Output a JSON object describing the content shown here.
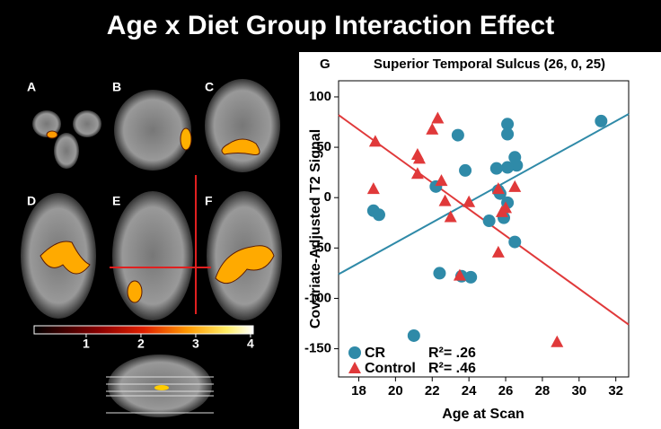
{
  "chart_data": {
    "type": "scatter",
    "title": "Age x Diet Group Interaction Effect",
    "panel_labels": [
      "A",
      "B",
      "C",
      "D",
      "E",
      "F",
      "G"
    ],
    "colorbar_ticks": [
      1,
      2,
      3,
      4
    ],
    "colorbar_lim": [
      0.05,
      4.05
    ],
    "plot_title": "Superior Temporal Sulcus (26, 0, 25)",
    "x_label": "Age at Scan",
    "y_label": "Covariate-Adjusted T2 Signal",
    "xlim": [
      16.9,
      32.7
    ],
    "ylim": [
      -178,
      116
    ],
    "xticks": [
      18,
      20,
      22,
      24,
      26,
      28,
      30,
      32
    ],
    "yticks": [
      -150,
      -100,
      -50,
      0,
      50,
      100
    ],
    "series": [
      {
        "name": "CR",
        "color": "#2f8aa8",
        "marker": "circle",
        "r2_label": "R²= .26",
        "x": [
          31.2,
          26.1,
          26.1,
          23.4,
          26.5,
          26.6,
          26.1,
          25.5,
          23.8,
          26.1,
          22.2,
          18.8,
          19.1,
          25.7,
          25.9,
          25.1,
          26.5,
          23.6,
          24.1,
          22.4,
          21.0,
          25.6
        ],
        "values": [
          76,
          73,
          63,
          62,
          40,
          32,
          30,
          29,
          27,
          -5,
          11,
          -13,
          -17,
          4,
          -20,
          -23,
          -44,
          -78,
          -79,
          -75,
          -137,
          7
        ],
        "fit_x": [
          16.9,
          32.7
        ],
        "fit_values": [
          -76,
          83
        ]
      },
      {
        "name": "Control",
        "color": "#e0393a",
        "marker": "triangle",
        "r2_label": "R²= .46",
        "x": [
          18.9,
          18.8,
          21.2,
          21.3,
          22.0,
          22.3,
          21.2,
          22.5,
          22.7,
          23.0,
          24.0,
          26.5,
          25.6,
          26.0,
          25.8,
          25.6,
          23.5,
          28.8
        ],
        "values": [
          56,
          9,
          43,
          39,
          68,
          79,
          24,
          17,
          -3,
          -19,
          -4,
          11,
          9,
          -10,
          -14,
          -54,
          -77,
          -143
        ],
        "fit_x": [
          16.9,
          32.7
        ],
        "fit_values": [
          82,
          -126
        ]
      }
    ]
  }
}
